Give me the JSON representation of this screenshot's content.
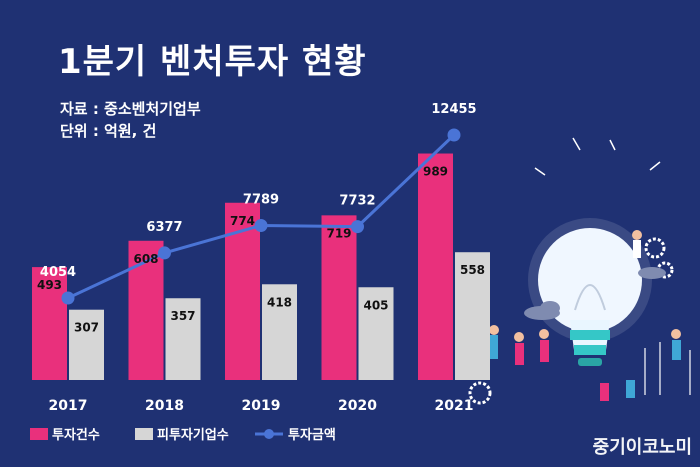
{
  "header": {
    "title": "1분기 벤처투자 현황",
    "source": "자료 : 중소벤처기업부",
    "unit": "단위 : 억원, 건"
  },
  "brand": "중기이코노미",
  "colors": {
    "background": "#1f3173",
    "pink": "#e9307c",
    "gray": "#d6d6d6",
    "line": "#4a74d6"
  },
  "icons": [
    "lightbulb-icon",
    "gear-icon",
    "cloud-icon",
    "worker-figures-icon"
  ],
  "chart_data": {
    "type": "bar",
    "categories": [
      "2017",
      "2018",
      "2019",
      "2020",
      "2021"
    ],
    "series": [
      {
        "name": "투자건수",
        "type": "bar",
        "values": [
          493,
          608,
          774,
          719,
          989
        ]
      },
      {
        "name": "피투자기업수",
        "type": "bar",
        "values": [
          307,
          357,
          418,
          405,
          558
        ]
      },
      {
        "name": "투자금액",
        "type": "line",
        "values": [
          4054,
          6377,
          7789,
          7732,
          12455
        ]
      }
    ],
    "legend": "bottom-left",
    "grid": false
  }
}
